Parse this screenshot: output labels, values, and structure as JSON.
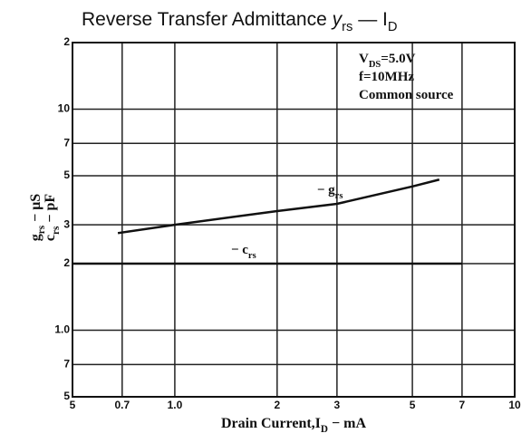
{
  "chart_data": {
    "type": "line",
    "title": [
      {
        "text": "Reverse Transfer Admittance "
      },
      {
        "text": "y",
        "italic": true
      },
      {
        "text": "rs",
        "sub": true
      },
      {
        "text": "  —  I"
      },
      {
        "text": "D",
        "sub": true
      }
    ],
    "annotations": [
      [
        {
          "text": "V"
        },
        {
          "text": "DS",
          "sub": true
        },
        {
          "text": "=5.0V"
        }
      ],
      [
        {
          "text": "f=10MHz"
        }
      ],
      [
        {
          "text": "Common source"
        }
      ]
    ],
    "x_label": [
      {
        "text": "Drain Current,I"
      },
      {
        "text": "D",
        "sub": true
      },
      {
        "text": " − mA"
      }
    ],
    "y_label": [
      [
        {
          "text": "g"
        },
        {
          "text": "rs",
          "sub": true
        },
        {
          "text": " − μS"
        }
      ],
      [
        {
          "text": "c"
        },
        {
          "text": "rs",
          "sub": true
        },
        {
          "text": " − pF"
        }
      ]
    ],
    "xlog": true,
    "ylog": true,
    "grid": true,
    "xlim": [
      0.5,
      10
    ],
    "ylim": [
      0.5,
      20
    ],
    "xticks": [
      {
        "value": 0.5,
        "label": "5"
      },
      0.7,
      {
        "value": 1,
        "label": "1.0"
      },
      2,
      3,
      5,
      7,
      10
    ],
    "yticks": [
      {
        "value": 0.5,
        "label": "5"
      },
      {
        "value": 0.7,
        "label": "7"
      },
      {
        "value": 1,
        "label": "1.0"
      },
      2,
      3,
      5,
      7,
      10,
      {
        "value": 20,
        "label": "2"
      }
    ],
    "series": [
      {
        "label": [
          {
            "text": "− g"
          },
          {
            "text": "rs",
            "sub": true
          }
        ],
        "color": "#111",
        "x": [
          0.68,
          1,
          2,
          3,
          5,
          6
        ],
        "values": [
          2.75,
          3.0,
          3.46,
          3.73,
          4.47,
          4.8
        ]
      },
      {
        "label": [
          {
            "text": "− c"
          },
          {
            "text": "rs",
            "sub": true
          }
        ],
        "color": "#111",
        "x": [
          0.5,
          7
        ],
        "values": [
          2.0,
          2.0
        ]
      }
    ]
  }
}
